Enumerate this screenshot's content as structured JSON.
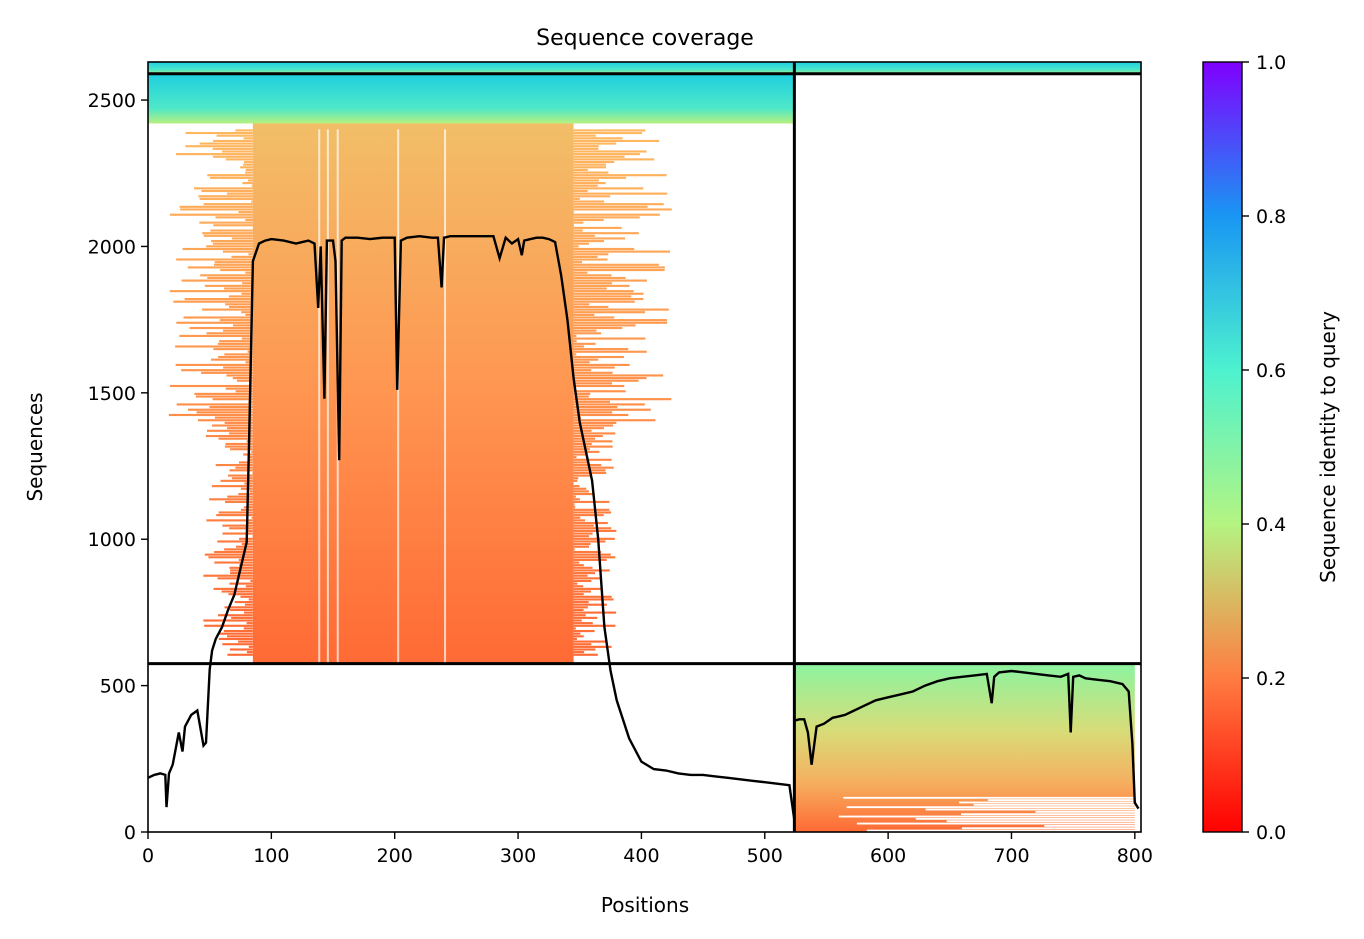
{
  "chart_data": {
    "type": "heatmap",
    "title": "Sequence coverage",
    "xlabel": "Positions",
    "ylabel": "Sequences",
    "xlim": [
      0,
      805
    ],
    "ylim": [
      0,
      2630
    ],
    "xticks": [
      "0",
      "100",
      "200",
      "300",
      "400",
      "500",
      "600",
      "700",
      "800"
    ],
    "yticks": [
      "0",
      "500",
      "1000",
      "1500",
      "2000",
      "2500"
    ],
    "chain_boundary_x": 524,
    "row_boundaries_y": [
      575,
      2590
    ],
    "colorbar": {
      "label": "Sequence identity to query",
      "range": [
        0,
        1
      ],
      "ticks": [
        "0.0",
        "0.2",
        "0.4",
        "0.6",
        "0.8",
        "1.0"
      ],
      "colormap": "rainbow_r"
    },
    "blocks": [
      {
        "name": "chain A paired",
        "x": [
          85,
          345
        ],
        "y": [
          575,
          2420
        ],
        "identity_bottom": 0.12,
        "identity_top": 0.24
      },
      {
        "name": "chain A paired top",
        "x": [
          0,
          524
        ],
        "y": [
          2420,
          2590
        ],
        "identity_bottom": 0.55,
        "identity_top": 0.66
      },
      {
        "name": "paired strip",
        "x": [
          0,
          805
        ],
        "y": [
          2590,
          2630
        ],
        "identity_bottom": 0.62,
        "identity_top": 0.66
      },
      {
        "name": "chain B unpaired",
        "x": [
          524,
          800
        ],
        "y": [
          0,
          575
        ],
        "identity_bottom": 0.12,
        "identity_top": 0.5
      }
    ],
    "coverage_chain_a": {
      "x": [
        0,
        5,
        10,
        14,
        15,
        17,
        20,
        25,
        28,
        30,
        35,
        40,
        45,
        47,
        50,
        52,
        55,
        60,
        65,
        70,
        75,
        80,
        82,
        85,
        90,
        95,
        100,
        110,
        120,
        125,
        130,
        135,
        138,
        140,
        143,
        145,
        150,
        152,
        155,
        157,
        160,
        165,
        170,
        180,
        190,
        200,
        202,
        205,
        210,
        220,
        230,
        235,
        238,
        240,
        245,
        250,
        260,
        270,
        280,
        285,
        290,
        295,
        300,
        303,
        305,
        310,
        315,
        320,
        325,
        330,
        335,
        340,
        345,
        350,
        355,
        360,
        365,
        370,
        375,
        380,
        390,
        400,
        410,
        420,
        430,
        440,
        450,
        460,
        470,
        480,
        490,
        500,
        510,
        520,
        524
      ],
      "y": [
        185,
        195,
        200,
        195,
        85,
        200,
        230,
        340,
        275,
        360,
        400,
        415,
        295,
        305,
        555,
        620,
        660,
        700,
        760,
        810,
        900,
        990,
        1350,
        1950,
        2010,
        2020,
        2025,
        2020,
        2010,
        2015,
        2020,
        2010,
        1790,
        2000,
        1480,
        2020,
        2020,
        1950,
        1270,
        2020,
        2030,
        2030,
        2030,
        2025,
        2030,
        2030,
        1510,
        2020,
        2030,
        2035,
        2030,
        2030,
        1860,
        2030,
        2035,
        2035,
        2035,
        2035,
        2035,
        1960,
        2030,
        2010,
        2025,
        1970,
        2020,
        2025,
        2030,
        2030,
        2025,
        2015,
        1900,
        1750,
        1550,
        1400,
        1300,
        1200,
        1000,
        700,
        550,
        450,
        320,
        240,
        215,
        210,
        200,
        195,
        195,
        190,
        185,
        180,
        175,
        170,
        165,
        160,
        40
      ]
    },
    "coverage_chain_b": {
      "x": [
        524,
        528,
        532,
        535,
        538,
        542,
        548,
        555,
        560,
        565,
        570,
        580,
        590,
        600,
        610,
        620,
        630,
        640,
        650,
        660,
        670,
        680,
        684,
        686,
        690,
        700,
        710,
        720,
        730,
        740,
        746,
        748,
        750,
        755,
        760,
        770,
        780,
        790,
        795,
        798,
        800,
        803
      ],
      "y": [
        380,
        385,
        385,
        340,
        230,
        360,
        370,
        390,
        395,
        400,
        410,
        430,
        450,
        460,
        470,
        480,
        500,
        515,
        525,
        530,
        535,
        540,
        440,
        530,
        545,
        550,
        545,
        540,
        535,
        530,
        540,
        340,
        530,
        535,
        525,
        520,
        515,
        505,
        480,
        300,
        100,
        80
      ]
    }
  }
}
